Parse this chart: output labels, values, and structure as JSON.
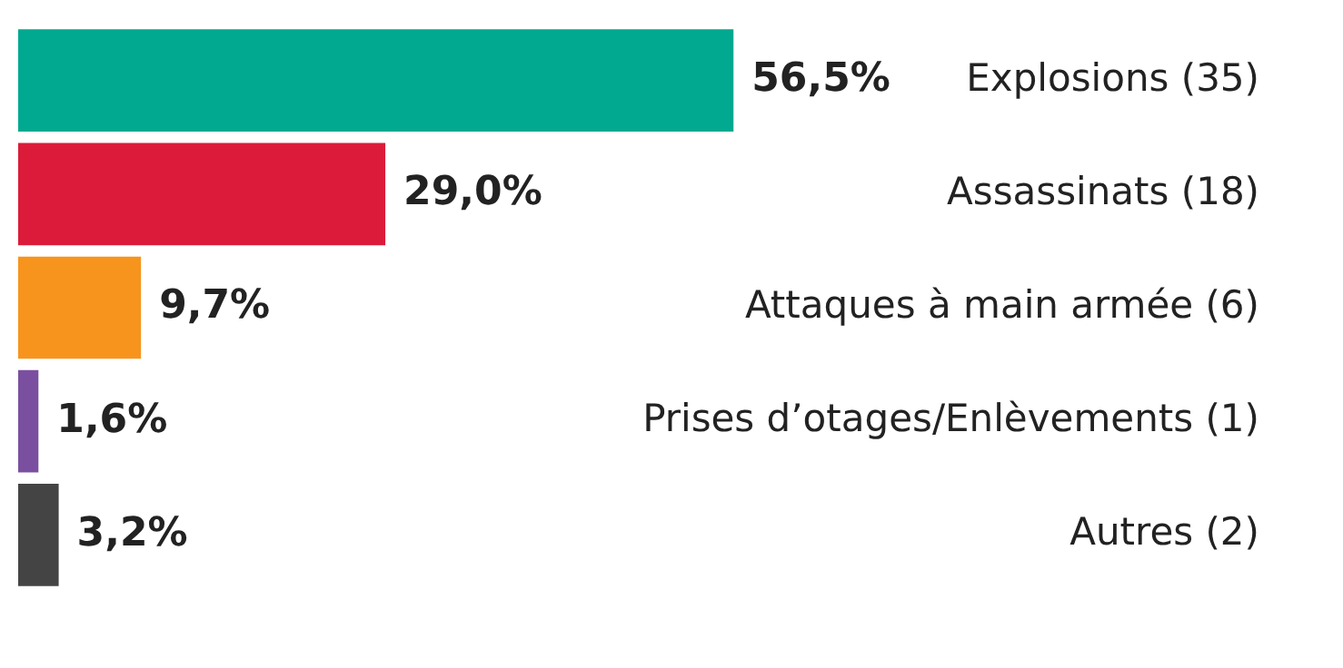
{
  "chart_data": {
    "type": "bar",
    "orientation": "horizontal",
    "categories": [
      "Explosions (35)",
      "Assassinats (18)",
      "Attaques à main armée (6)",
      "Prises d’otages/Enlèvements (1)",
      "Autres (2)"
    ],
    "values": [
      56.5,
      29.0,
      9.7,
      1.6,
      3.2
    ],
    "colors": [
      "#00a98f",
      "#dc1b3a",
      "#f7941d",
      "#7b4fa0",
      "#444444"
    ],
    "value_labels": [
      "56,5%",
      "29,0%",
      "9,7%",
      "1,6%",
      "3,2%"
    ]
  }
}
